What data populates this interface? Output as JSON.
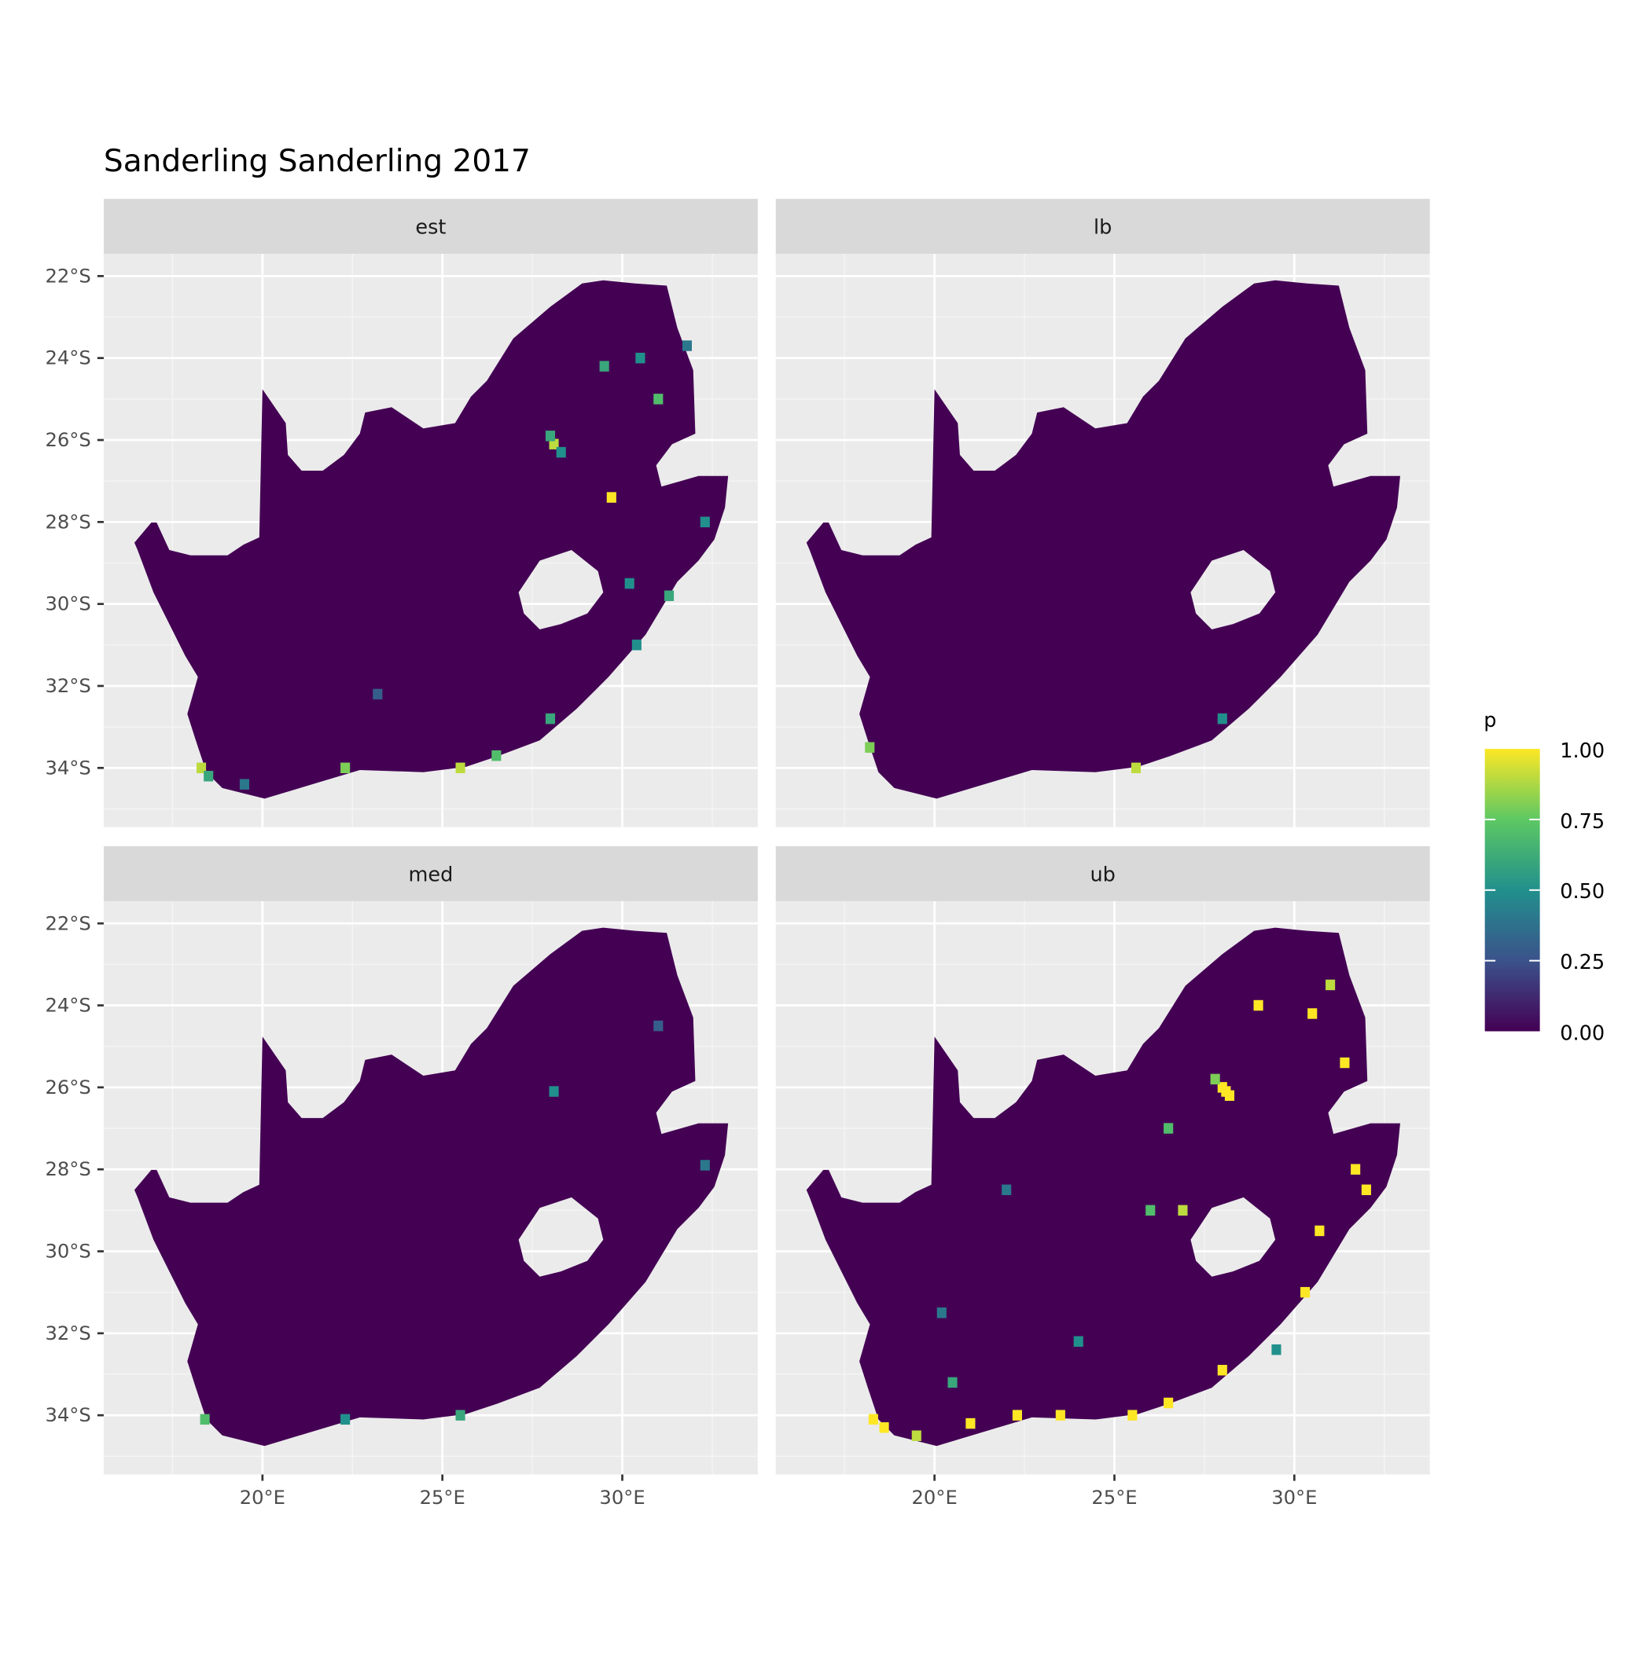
{
  "chart_data": {
    "type": "heatmap",
    "title": "Sanderling Sanderling 2017",
    "facets": [
      "est",
      "lb",
      "med",
      "ub"
    ],
    "x_ticks": [
      "20°E",
      "25°E",
      "30°E"
    ],
    "x_tick_values": [
      20,
      25,
      30
    ],
    "y_ticks": [
      "22°S",
      "24°S",
      "26°S",
      "28°S",
      "30°S",
      "32°S",
      "34°S"
    ],
    "y_tick_values": [
      -22,
      -24,
      -26,
      -28,
      -30,
      -32,
      -34
    ],
    "xlim": [
      15.6,
      33.8
    ],
    "ylim": [
      -35.5,
      -21.5
    ],
    "grid": true,
    "legend": {
      "title": "p",
      "position": "right",
      "labels": [
        "1.00",
        "0.75",
        "0.50",
        "0.25",
        "0.00"
      ],
      "range": [
        0,
        1
      ],
      "colors": [
        "#440154",
        "#3B528B",
        "#21908C",
        "#5DC863",
        "#FDE725"
      ]
    },
    "background_value": 0.0,
    "hotspots": {
      "est": [
        [
          28.1,
          -26.1,
          0.9
        ],
        [
          28.0,
          -25.9,
          0.6
        ],
        [
          28.3,
          -26.3,
          0.5
        ],
        [
          29.5,
          -24.2,
          0.6
        ],
        [
          31.0,
          -25.0,
          0.7
        ],
        [
          30.5,
          -24.0,
          0.5
        ],
        [
          31.8,
          -23.7,
          0.4
        ],
        [
          29.7,
          -27.4,
          1.0
        ],
        [
          31.3,
          -29.8,
          0.6
        ],
        [
          30.2,
          -29.5,
          0.5
        ],
        [
          30.4,
          -31.0,
          0.5
        ],
        [
          18.3,
          -34.0,
          0.9
        ],
        [
          18.5,
          -34.2,
          0.6
        ],
        [
          19.5,
          -34.4,
          0.4
        ],
        [
          22.3,
          -34.0,
          0.8
        ],
        [
          25.5,
          -34.0,
          0.9
        ],
        [
          26.5,
          -33.7,
          0.7
        ],
        [
          28.0,
          -32.8,
          0.6
        ],
        [
          32.3,
          -28.0,
          0.5
        ],
        [
          23.2,
          -32.2,
          0.3
        ]
      ],
      "lb": [
        [
          25.6,
          -34.0,
          0.9
        ],
        [
          28.0,
          -32.8,
          0.5
        ],
        [
          18.2,
          -33.5,
          0.8
        ]
      ],
      "med": [
        [
          28.1,
          -26.1,
          0.5
        ],
        [
          18.4,
          -34.1,
          0.7
        ],
        [
          25.5,
          -34.0,
          0.6
        ],
        [
          22.3,
          -34.1,
          0.5
        ],
        [
          32.3,
          -27.9,
          0.4
        ],
        [
          31.0,
          -24.5,
          0.3
        ]
      ],
      "ub": [
        [
          28.1,
          -26.1,
          1
        ],
        [
          28.0,
          -26.0,
          1
        ],
        [
          28.2,
          -26.2,
          1
        ],
        [
          27.8,
          -25.8,
          0.8
        ],
        [
          29.0,
          -24.0,
          1
        ],
        [
          30.5,
          -24.2,
          1
        ],
        [
          31.4,
          -25.4,
          1
        ],
        [
          31.0,
          -23.5,
          0.9
        ],
        [
          32.0,
          -28.5,
          1
        ],
        [
          31.7,
          -28.0,
          1
        ],
        [
          30.7,
          -29.5,
          1
        ],
        [
          30.3,
          -31.0,
          1
        ],
        [
          18.3,
          -34.1,
          1
        ],
        [
          18.6,
          -34.3,
          1
        ],
        [
          19.5,
          -34.5,
          0.9
        ],
        [
          21.0,
          -34.2,
          1
        ],
        [
          22.3,
          -34.0,
          1
        ],
        [
          23.5,
          -34.0,
          1
        ],
        [
          25.5,
          -34.0,
          1
        ],
        [
          26.5,
          -33.7,
          1
        ],
        [
          28.0,
          -32.9,
          1
        ],
        [
          20.5,
          -33.2,
          0.6
        ],
        [
          24.0,
          -32.2,
          0.5
        ],
        [
          26.0,
          -29.0,
          0.7
        ],
        [
          26.9,
          -29.0,
          0.9
        ],
        [
          20.2,
          -31.5,
          0.4
        ],
        [
          22.0,
          -28.5,
          0.4
        ],
        [
          26.5,
          -27.0,
          0.7
        ],
        [
          29.5,
          -32.4,
          0.5
        ]
      ]
    }
  }
}
